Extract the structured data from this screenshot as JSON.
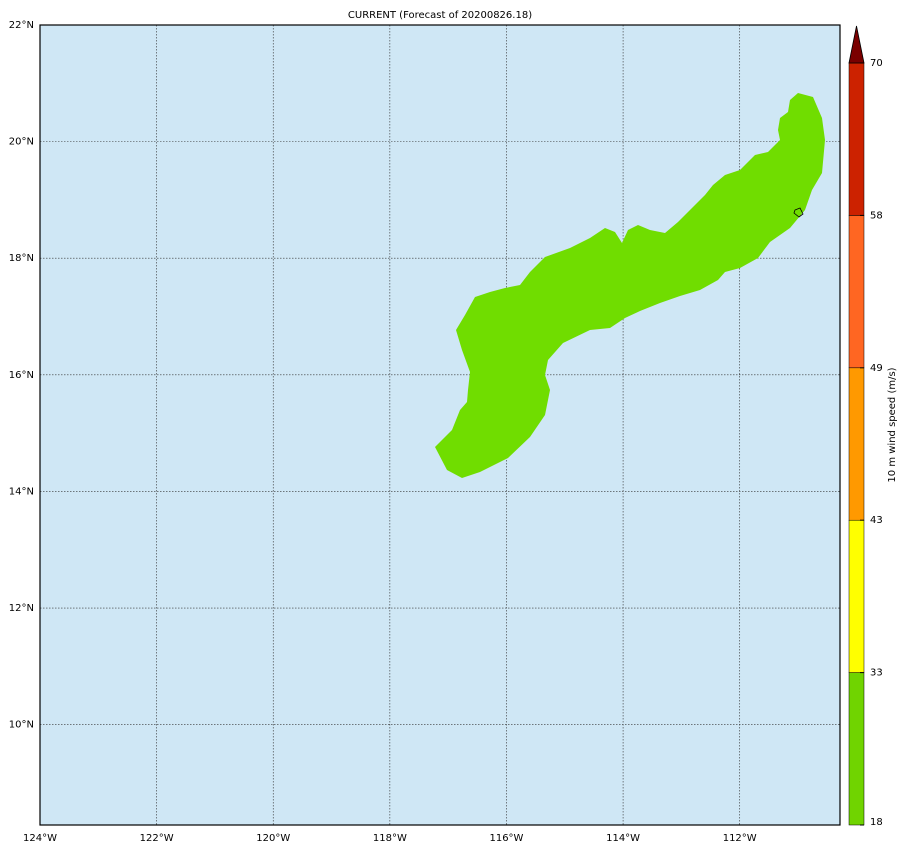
{
  "map": {
    "title": "CURRENT (Forecast of 20200826.18)",
    "xlim": [
      -124,
      -110.28
    ],
    "ylim": [
      8.28,
      22
    ],
    "xticks": [
      {
        "value": -124,
        "label": "124°W"
      },
      {
        "value": -122,
        "label": "122°W"
      },
      {
        "value": -120,
        "label": "120°W"
      },
      {
        "value": -118,
        "label": "118°W"
      },
      {
        "value": -116,
        "label": "116°W"
      },
      {
        "value": -114,
        "label": "114°W"
      },
      {
        "value": -112,
        "label": "112°W"
      }
    ],
    "yticks": [
      {
        "value": 10,
        "label": "10°N"
      },
      {
        "value": 12,
        "label": "12°N"
      },
      {
        "value": 14,
        "label": "14°N"
      },
      {
        "value": 16,
        "label": "16°N"
      },
      {
        "value": 18,
        "label": "18°N"
      },
      {
        "value": 20,
        "label": "20°N"
      },
      {
        "value": 22,
        "label": "22°N"
      }
    ],
    "grid": true,
    "colorbar": {
      "label": "10 m wind speed (m/s)",
      "levels": [
        18,
        33,
        43,
        49,
        58,
        70
      ],
      "colors": [
        "#70d400",
        "#ffff00",
        "#ff9900",
        "#ff6622",
        "#cc2200"
      ],
      "extend_color": "#7a0000"
    }
  }
}
